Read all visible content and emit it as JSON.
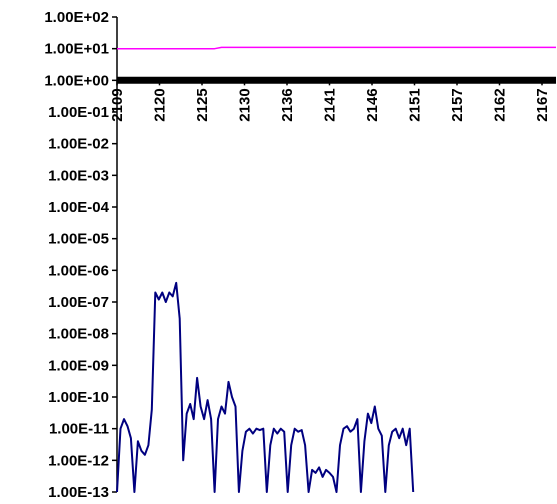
{
  "chart_data": {
    "type": "line",
    "title": "",
    "xlabel": "",
    "ylabel": "",
    "yscale": "log",
    "ylim": [
      1e-13,
      100
    ],
    "y_tick_labels": [
      "1.00E+02",
      "1.00E+01",
      "1.00E+00",
      "1.00E-01",
      "1.00E-02",
      "1.00E-03",
      "1.00E-04",
      "1.00E-05",
      "1.00E-06",
      "1.00E-07",
      "1.00E-08",
      "1.00E-09",
      "1.00E-10",
      "1.00E-11",
      "1.00E-12",
      "1.00E-13"
    ],
    "x_tick_labels": [
      "2109",
      "2120",
      "2125",
      "2130",
      "2136",
      "2141",
      "2146",
      "2151",
      "2157",
      "2162",
      "2167"
    ],
    "xlim": [
      2109,
      2172
    ],
    "x_axis_crosses_y": 1.0,
    "grid": false,
    "legend": "none",
    "series": [
      {
        "color": "#ff00ff",
        "points": [
          [
            2109,
            10
          ],
          [
            2123,
            10
          ],
          [
            2124,
            11
          ],
          [
            2172,
            11
          ]
        ]
      },
      {
        "color": "#000000",
        "points": [
          [
            2109,
            1.0
          ],
          [
            2172,
            1.0
          ]
        ]
      },
      {
        "color": "#000080",
        "points": [
          [
            2109,
            1e-13
          ],
          [
            2109.5,
            1e-11
          ],
          [
            2110,
            2e-11
          ],
          [
            2110.5,
            1.2e-11
          ],
          [
            2111,
            5e-12
          ],
          [
            2111.5,
            1e-13
          ],
          [
            2112,
            4e-12
          ],
          [
            2112.5,
            2e-12
          ],
          [
            2113,
            1.5e-12
          ],
          [
            2113.5,
            3e-12
          ],
          [
            2114,
            4e-11
          ],
          [
            2114.5,
            2e-07
          ],
          [
            2115,
            1.2e-07
          ],
          [
            2115.5,
            2e-07
          ],
          [
            2116,
            1e-07
          ],
          [
            2116.5,
            2e-07
          ],
          [
            2117,
            1.5e-07
          ],
          [
            2117.5,
            4e-07
          ],
          [
            2118,
            3e-08
          ],
          [
            2118.5,
            1e-12
          ],
          [
            2119,
            3e-11
          ],
          [
            2119.5,
            6e-11
          ],
          [
            2120,
            2e-11
          ],
          [
            2120.5,
            4e-10
          ],
          [
            2121,
            5e-11
          ],
          [
            2121.5,
            2e-11
          ],
          [
            2122,
            8e-11
          ],
          [
            2122.5,
            2e-11
          ],
          [
            2123,
            1e-13
          ],
          [
            2123.5,
            2e-11
          ],
          [
            2124,
            5e-11
          ],
          [
            2124.5,
            3e-11
          ],
          [
            2125,
            3e-10
          ],
          [
            2125.5,
            1e-10
          ],
          [
            2126,
            5e-11
          ],
          [
            2126.5,
            1e-13
          ],
          [
            2127,
            2e-12
          ],
          [
            2127.5,
            8e-12
          ],
          [
            2128,
            1e-11
          ],
          [
            2128.5,
            7e-12
          ],
          [
            2129,
            1e-11
          ],
          [
            2129.5,
            9e-12
          ],
          [
            2130,
            1e-11
          ],
          [
            2130.5,
            1e-13
          ],
          [
            2131,
            3e-12
          ],
          [
            2131.5,
            1e-11
          ],
          [
            2132,
            7e-12
          ],
          [
            2132.5,
            1e-11
          ],
          [
            2133,
            8e-12
          ],
          [
            2133.5,
            1e-13
          ],
          [
            2134,
            3e-12
          ],
          [
            2134.5,
            1e-11
          ],
          [
            2135,
            8e-12
          ],
          [
            2135.5,
            9e-12
          ],
          [
            2136,
            3e-12
          ],
          [
            2136.5,
            1e-13
          ],
          [
            2137,
            5e-13
          ],
          [
            2137.5,
            4e-13
          ],
          [
            2138,
            6e-13
          ],
          [
            2138.5,
            3e-13
          ],
          [
            2139,
            5e-13
          ],
          [
            2139.5,
            4e-13
          ],
          [
            2140,
            3e-13
          ],
          [
            2140.5,
            1e-13
          ],
          [
            2141,
            3e-12
          ],
          [
            2141.5,
            1e-11
          ],
          [
            2142,
            1.2e-11
          ],
          [
            2142.5,
            8e-12
          ],
          [
            2143,
            1e-11
          ],
          [
            2143.5,
            2e-11
          ],
          [
            2144,
            1e-13
          ],
          [
            2144.5,
            4e-12
          ],
          [
            2145,
            3e-11
          ],
          [
            2145.5,
            1.5e-11
          ],
          [
            2146,
            5e-11
          ],
          [
            2146.5,
            1e-11
          ],
          [
            2147,
            6e-12
          ],
          [
            2147.5,
            1e-13
          ],
          [
            2148,
            3e-12
          ],
          [
            2148.5,
            8e-12
          ],
          [
            2149,
            1e-11
          ],
          [
            2149.5,
            5e-12
          ],
          [
            2150,
            1e-11
          ],
          [
            2150.5,
            3e-12
          ],
          [
            2151,
            1e-11
          ],
          [
            2151.5,
            1e-13
          ]
        ]
      }
    ]
  }
}
